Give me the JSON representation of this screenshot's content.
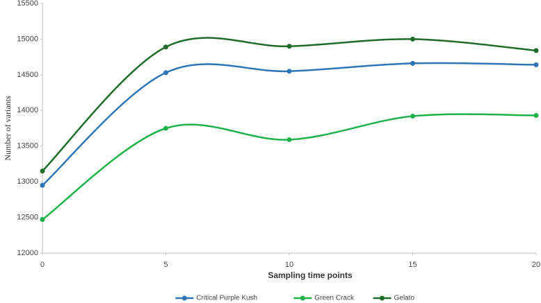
{
  "chart_data": {
    "type": "line",
    "smooth": true,
    "x_label": "Sampling time points",
    "y_label": "Number of variants",
    "x": [
      0,
      5,
      10,
      15,
      20
    ],
    "xlim": [
      0,
      20
    ],
    "xticks": [
      0,
      5,
      10,
      15,
      20
    ],
    "ylim": [
      12000,
      15500
    ],
    "yticks": [
      12000,
      12500,
      13000,
      13500,
      14000,
      14500,
      15000,
      15500
    ],
    "grid": false,
    "legend": "bottom",
    "series": [
      {
        "name": "Critical Purple Kush",
        "color": "#2e75b6",
        "values": [
          12950,
          14530,
          14550,
          14660,
          14640
        ]
      },
      {
        "name": "Green Crack",
        "color": "#1fb24a",
        "values": [
          12470,
          13750,
          13590,
          13920,
          13930
        ]
      },
      {
        "name": "Gelato",
        "color": "#1e6b2a",
        "values": [
          13150,
          14890,
          14900,
          15000,
          14840
        ]
      }
    ]
  }
}
